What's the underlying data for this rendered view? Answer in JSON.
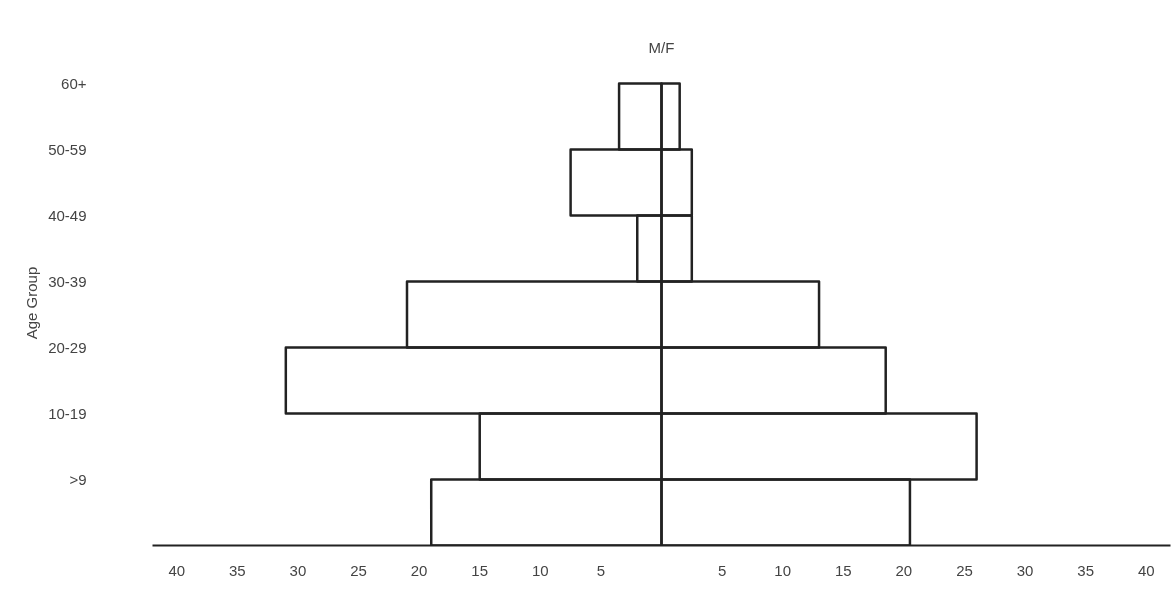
{
  "chart_data": {
    "type": "bar",
    "orientation": "horizontal",
    "title": "M/F",
    "ylabel": "Age Group",
    "categories": [
      "60+",
      "50-59",
      "40-49",
      "30-39",
      "20-29",
      "10-19",
      ">9"
    ],
    "series": [
      {
        "color": "#222222",
        "values": [
          -3.5,
          -7.5,
          -2,
          -21,
          -31,
          -15,
          -19
        ]
      },
      {
        "color": "#222222",
        "values": [
          1.5,
          2.5,
          2.5,
          13,
          18.5,
          26,
          20.5
        ]
      }
    ],
    "xlim": [
      -42,
      42
    ],
    "xticks": [
      {
        "value": -40,
        "label": "40"
      },
      {
        "value": -35,
        "label": "35"
      },
      {
        "value": -30,
        "label": "30"
      },
      {
        "value": -25,
        "label": "25"
      },
      {
        "value": -20,
        "label": "20"
      },
      {
        "value": -15,
        "label": "15"
      },
      {
        "value": -10,
        "label": "10"
      },
      {
        "value": -5,
        "label": "5"
      },
      5,
      10,
      15,
      20,
      25,
      30,
      35,
      40
    ],
    "grid": false
  }
}
